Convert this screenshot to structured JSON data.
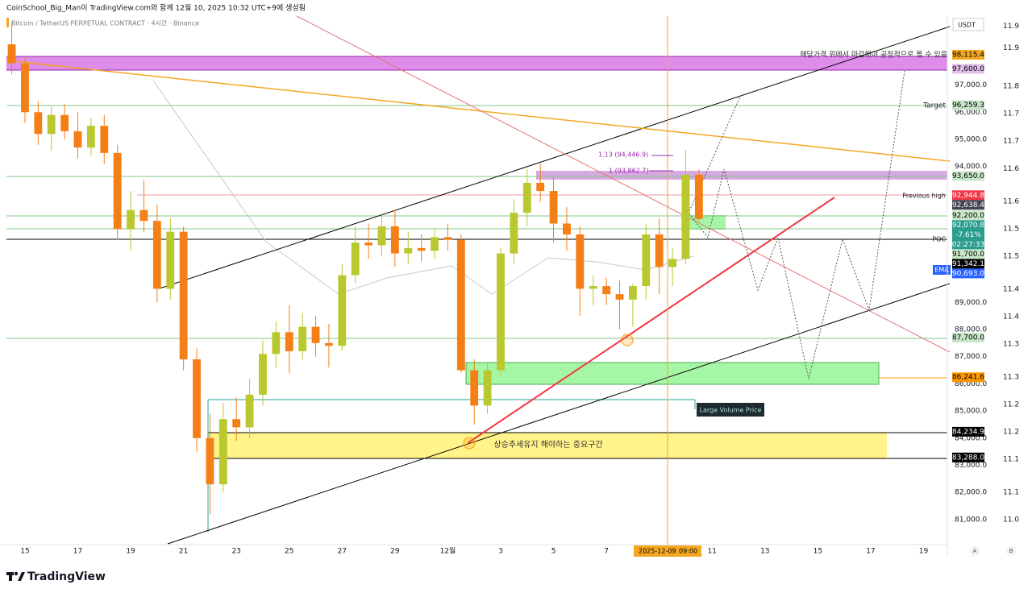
{
  "header": {
    "author_line": "CoinSchool_Big_Man이 TradingView.com와 함께 12월 10, 2025 10:32 UTC+9에 생성됨",
    "symbol": "Bitcoin / TetherUS PERPETUAL CONTRACT · 4시간 · Binance",
    "currency": "USDT",
    "logo": "TradingView"
  },
  "chart_data": {
    "type": "candlestick",
    "x": [
      -0.5,
      0,
      0.5,
      1,
      1.5,
      2,
      2.5,
      3,
      3.5,
      4,
      4.5,
      5,
      5.5,
      6,
      6.5,
      7,
      7.5,
      8,
      8.5,
      9,
      9.5,
      10,
      10.5,
      11,
      11.5,
      12,
      12.5,
      13,
      13.5,
      14,
      14.5,
      15,
      15.5,
      16,
      16.5,
      17,
      17.5,
      18,
      18.5,
      19,
      19.5,
      20,
      20.5,
      21,
      21.5,
      22,
      22.5,
      23,
      23.5,
      24,
      24.5,
      25,
      25.5
    ],
    "open": [
      98500,
      97800,
      96000,
      95200,
      95900,
      95300,
      94700,
      95500,
      94500,
      91700,
      92400,
      92000,
      89500,
      91600,
      86900,
      84000,
      82300,
      84700,
      84400,
      85600,
      87100,
      87900,
      87200,
      88100,
      87500,
      87400,
      90000,
      91200,
      91100,
      91800,
      90800,
      91000,
      90900,
      91400,
      91300,
      86500,
      85200,
      86500,
      90800,
      92300,
      93400,
      93100,
      91900,
      91500,
      89500,
      89600,
      89300,
      89100,
      89600,
      91500,
      90300,
      90600,
      93700
    ],
    "high": [
      99300,
      98000,
      96400,
      96200,
      96300,
      96000,
      95800,
      95900,
      94800,
      93100,
      93500,
      92600,
      92100,
      91800,
      87300,
      84900,
      85300,
      85500,
      86200,
      87600,
      88300,
      88900,
      88600,
      88500,
      88200,
      90400,
      91800,
      91900,
      92300,
      92400,
      91600,
      91500,
      91700,
      91900,
      91500,
      86900,
      86800,
      91000,
      92800,
      93900,
      94100,
      93600,
      92500,
      91800,
      90000,
      89900,
      89800,
      89700,
      91900,
      92100,
      91000,
      94600,
      93900
    ],
    "low": [
      97400,
      95600,
      94800,
      94600,
      95000,
      94300,
      94400,
      94100,
      91300,
      90900,
      91600,
      89000,
      89100,
      86500,
      83500,
      81200,
      82000,
      83900,
      84000,
      85200,
      86600,
      86400,
      86900,
      87000,
      86600,
      87200,
      89700,
      90600,
      90700,
      90300,
      90400,
      90500,
      90600,
      90900,
      86400,
      84500,
      84900,
      86300,
      90400,
      91800,
      92700,
      91200,
      90900,
      88500,
      88900,
      88900,
      88000,
      88100,
      89100,
      89300,
      89600,
      90400,
      92000
    ],
    "close": [
      97800,
      96000,
      95200,
      95900,
      95300,
      94700,
      95500,
      94500,
      91700,
      92400,
      92000,
      89500,
      91600,
      86900,
      84000,
      82300,
      84700,
      84400,
      85600,
      87100,
      87900,
      87200,
      88100,
      87500,
      87400,
      90000,
      91200,
      91100,
      91800,
      90800,
      91000,
      90900,
      91400,
      91300,
      86500,
      85200,
      86500,
      90800,
      92300,
      93400,
      93100,
      91900,
      91500,
      89500,
      89600,
      89300,
      89100,
      89600,
      91500,
      90300,
      90600,
      93700,
      92070.8
    ],
    "up_color": "#b8c82e",
    "down_color": "#f57f17",
    "xlim": [
      -0.7,
      34.9
    ],
    "xticks": [
      {
        "value": 0,
        "label": "15"
      },
      {
        "value": 2,
        "label": "17"
      },
      {
        "value": 4,
        "label": "19"
      },
      {
        "value": 6,
        "label": "21"
      },
      {
        "value": 8,
        "label": "23"
      },
      {
        "value": 10,
        "label": "25"
      },
      {
        "value": 12,
        "label": "27"
      },
      {
        "value": 14,
        "label": "29"
      },
      {
        "value": 16,
        "label": "12월"
      },
      {
        "value": 18,
        "label": "3"
      },
      {
        "value": 20,
        "label": "5"
      },
      {
        "value": 22,
        "label": "7"
      },
      {
        "value": 26,
        "label": "11"
      },
      {
        "value": 28,
        "label": "13"
      },
      {
        "value": 30,
        "label": "15"
      },
      {
        "value": 32,
        "label": "17"
      },
      {
        "value": 34,
        "label": "19"
      }
    ],
    "ylim": [
      79604,
      99539
    ],
    "yticks": [
      {
        "value": 81000,
        "label": "81,000.0"
      },
      {
        "value": 82000,
        "label": "82,000.0"
      },
      {
        "value": 83000,
        "label": "83,000.0"
      },
      {
        "value": 84000,
        "label": "84,000.0"
      },
      {
        "value": 85000,
        "label": "85,000.0"
      },
      {
        "value": 86000,
        "label": "86,000.0"
      },
      {
        "value": 87000,
        "label": "87,000.0"
      },
      {
        "value": 88000,
        "label": "88,000.0"
      },
      {
        "value": 89000,
        "label": "89,000.0"
      },
      {
        "value": 94000,
        "label": "94,000.0"
      },
      {
        "value": 95000,
        "label": "95,000.0"
      },
      {
        "value": 96000,
        "label": "96,000.0"
      },
      {
        "value": 97000,
        "label": "97,000.0"
      }
    ],
    "y2lim": [
      10.931,
      11.918
    ],
    "y2ticks": [
      {
        "value": 11,
        "label": "11.0"
      },
      {
        "value": 11.05,
        "label": "11.1"
      },
      {
        "value": 11.11,
        "label": "11.1"
      },
      {
        "value": 11.16,
        "label": "11.2"
      },
      {
        "value": 11.21,
        "label": "11.2"
      },
      {
        "value": 11.26,
        "label": "11.3"
      },
      {
        "value": 11.32,
        "label": "11.3"
      },
      {
        "value": 11.37,
        "label": "11.4"
      },
      {
        "value": 11.42,
        "label": "11.4"
      },
      {
        "value": 11.48,
        "label": "11.5"
      },
      {
        "value": 11.53,
        "label": "11.5"
      },
      {
        "value": 11.58,
        "label": "11.6"
      },
      {
        "value": 11.64,
        "label": "11.6"
      },
      {
        "value": 11.69,
        "label": "11.7"
      },
      {
        "value": 11.74,
        "label": "11.7"
      },
      {
        "value": 11.79,
        "label": "11.8"
      },
      {
        "value": 11.86,
        "label": "11.9"
      },
      {
        "value": 11.9,
        "label": "11.9"
      }
    ],
    "price_tags": [
      {
        "value": 98115.4,
        "label": "98,115.4",
        "bg": "#f5a623",
        "fg": "#000"
      },
      {
        "value": 97600,
        "label": "97,600.0",
        "bg": "#e1bee7",
        "fg": "#000"
      },
      {
        "value": 96259.3,
        "label": "96,259.3",
        "bg": "#c8e6c9",
        "fg": "#000"
      },
      {
        "value": 93650,
        "label": "93,650.0",
        "bg": "#c8e6c9",
        "fg": "#000"
      },
      {
        "value": 92944.8,
        "label": "92,944.8",
        "bg": "#f23645",
        "fg": "#fff"
      },
      {
        "value": 92638.4,
        "label": "92,638.4",
        "bg": "#434651",
        "fg": "#fff"
      },
      {
        "value": 92200,
        "label": "92,200.0",
        "bg": "#c8e6c9",
        "fg": "#000"
      },
      {
        "value": 92070.8,
        "label": "92,070.8",
        "bg": "#2a9d8f",
        "fg": "#fff",
        "sub": [
          "-7.61%",
          "02:27:33"
        ]
      },
      {
        "value": 91700,
        "label": "91,700.0",
        "bg": "#c8e6c9",
        "fg": "#000"
      },
      {
        "value": 91342.1,
        "label": "91,342.1",
        "bg": "#000000",
        "fg": "#fff"
      },
      {
        "value": 90693,
        "label": "90,693.0",
        "bg": "#2962ff",
        "fg": "#fff"
      },
      {
        "value": 87700,
        "label": "87,700.0",
        "bg": "#c8e6c9",
        "fg": "#000"
      },
      {
        "value": 86241.6,
        "label": "86,241.6",
        "bg": "#ff9800",
        "fg": "#000"
      },
      {
        "value": 84234.9,
        "label": "84,234.9",
        "bg": "#000000",
        "fg": "#fff"
      },
      {
        "value": 83288,
        "label": "83,288.0",
        "bg": "#000000",
        "fg": "#fff"
      }
    ],
    "annotations": {
      "close_note": "해당가격 위에서 마감해야 공정적으로 볼 수 있음",
      "target": "Target",
      "previous_high": "Previous high",
      "poc": "POC",
      "ema": "EMA",
      "fib_113": "1.13 (94,446.9)",
      "fib_1": "1 (93,862.7)",
      "large_volume": "Large Volume Price",
      "support_zone": "상승추세유지 해야하는 중요구간"
    },
    "crosshair": {
      "date": "2025-12-09",
      "time": "09:00"
    },
    "scale_buttons": [
      "A",
      "B"
    ]
  }
}
